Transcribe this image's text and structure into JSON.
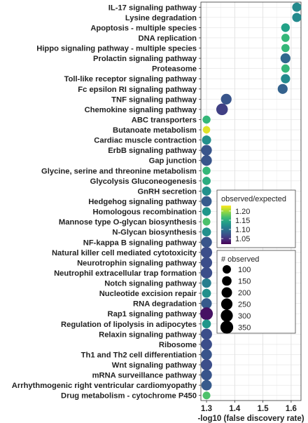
{
  "chart_data": {
    "type": "scatter",
    "title": "",
    "xlabel": "-log10 (false discovery rate)",
    "ylabel": "",
    "xlim": [
      1.28,
      1.635
    ],
    "xticks": [
      1.3,
      1.4,
      1.5,
      1.6
    ],
    "xtick_labels": [
      "1.3",
      "1.4",
      "1.5",
      "1.6"
    ],
    "grid": true,
    "color_scale": "viridis",
    "points": [
      {
        "category": "IL-17 signaling pathway",
        "x": 1.62,
        "ratio": 1.12,
        "observed": 130
      },
      {
        "category": "Lysine degradation",
        "x": 1.62,
        "ratio": 1.12,
        "observed": 130
      },
      {
        "category": "Apoptosis - multiple species",
        "x": 1.58,
        "ratio": 1.14,
        "observed": 110
      },
      {
        "category": "DNA replication",
        "x": 1.58,
        "ratio": 1.16,
        "observed": 90
      },
      {
        "category": "Hippo signaling pathway - multiple species",
        "x": 1.58,
        "ratio": 1.16,
        "observed": 90
      },
      {
        "category": "Prolactin signaling pathway",
        "x": 1.58,
        "ratio": 1.09,
        "observed": 170
      },
      {
        "category": "Proteasome",
        "x": 1.58,
        "ratio": 1.16,
        "observed": 95
      },
      {
        "category": "Toll-like receptor signaling pathway",
        "x": 1.58,
        "ratio": 1.12,
        "observed": 135
      },
      {
        "category": "Fc epsilon RI signaling pathway",
        "x": 1.57,
        "ratio": 1.085,
        "observed": 170
      },
      {
        "category": "TNF signaling pathway",
        "x": 1.37,
        "ratio": 1.075,
        "observed": 210
      },
      {
        "category": "Chemokine signaling pathway",
        "x": 1.355,
        "ratio": 1.06,
        "observed": 265
      },
      {
        "category": "ABC transporters",
        "x": 1.3,
        "ratio": 1.16,
        "observed": 85
      },
      {
        "category": "Butanoate metabolism",
        "x": 1.3,
        "ratio": 1.22,
        "observed": 65
      },
      {
        "category": "Cardiac muscle contraction",
        "x": 1.3,
        "ratio": 1.125,
        "observed": 130
      },
      {
        "category": "ErbB signaling pathway",
        "x": 1.3,
        "ratio": 1.075,
        "observed": 210
      },
      {
        "category": "Gap junction",
        "x": 1.3,
        "ratio": 1.075,
        "observed": 210
      },
      {
        "category": "Glycine, serine and threonine metabolism",
        "x": 1.3,
        "ratio": 1.16,
        "observed": 85
      },
      {
        "category": "Glycolysis  Gluconeogenesis",
        "x": 1.3,
        "ratio": 1.15,
        "observed": 95
      },
      {
        "category": "GnRH secretion",
        "x": 1.3,
        "ratio": 1.125,
        "observed": 130
      },
      {
        "category": "Hedgehog signaling pathway",
        "x": 1.3,
        "ratio": 1.08,
        "observed": 190
      },
      {
        "category": "Homologous recombination",
        "x": 1.3,
        "ratio": 1.13,
        "observed": 110
      },
      {
        "category": "Mannose type O-glycan biosynthesis",
        "x": 1.3,
        "ratio": 1.17,
        "observed": 75
      },
      {
        "category": "N-Glycan biosynthesis",
        "x": 1.3,
        "ratio": 1.125,
        "observed": 120
      },
      {
        "category": "NF-kappa B signaling pathway",
        "x": 1.3,
        "ratio": 1.075,
        "observed": 215
      },
      {
        "category": "Natural killer cell mediated cytotoxicity",
        "x": 1.3,
        "ratio": 1.07,
        "observed": 240
      },
      {
        "category": "Neurotrophin signaling pathway",
        "x": 1.3,
        "ratio": 1.07,
        "observed": 240
      },
      {
        "category": "Neutrophil extracellular trap formation",
        "x": 1.3,
        "ratio": 1.07,
        "observed": 250
      },
      {
        "category": "Notch signaling pathway",
        "x": 1.3,
        "ratio": 1.11,
        "observed": 140
      },
      {
        "category": "Nucleotide excision repair",
        "x": 1.3,
        "ratio": 1.125,
        "observed": 120
      },
      {
        "category": "RNA degradation",
        "x": 1.3,
        "ratio": 1.08,
        "observed": 200
      },
      {
        "category": "Rap1 signaling pathway",
        "x": 1.3,
        "ratio": 1.03,
        "observed": 340
      },
      {
        "category": "Regulation of lipolysis in adipocytes",
        "x": 1.3,
        "ratio": 1.13,
        "observed": 115
      },
      {
        "category": "Relaxin signaling pathway",
        "x": 1.3,
        "ratio": 1.07,
        "observed": 230
      },
      {
        "category": "Ribosome",
        "x": 1.3,
        "ratio": 1.07,
        "observed": 230
      },
      {
        "category": "Th1 and Th2 cell differentiation",
        "x": 1.3,
        "ratio": 1.075,
        "observed": 215
      },
      {
        "category": "Wnt signaling pathway",
        "x": 1.3,
        "ratio": 1.07,
        "observed": 240
      },
      {
        "category": "mRNA surveillance pathway",
        "x": 1.3,
        "ratio": 1.075,
        "observed": 215
      },
      {
        "category": "Arrhythmogenic right ventricular cardiomyopathy",
        "x": 1.3,
        "ratio": 1.08,
        "observed": 195
      },
      {
        "category": "Drug metabolism - cytochrome P450",
        "x": 1.3,
        "ratio": 1.17,
        "observed": 75
      }
    ],
    "color_legend": {
      "title": "observed/expected",
      "range": [
        1.02,
        1.23
      ],
      "ticks": [
        1.05,
        1.1,
        1.15,
        1.2
      ],
      "tick_labels": [
        "1.05",
        "1.10",
        "1.15",
        "1.20"
      ]
    },
    "size_legend": {
      "title": "# observed",
      "values": [
        100,
        150,
        200,
        250,
        300,
        350
      ],
      "labels": [
        "100",
        "150",
        "200",
        "250",
        "300",
        "350"
      ]
    },
    "legend_position": "right-inside"
  }
}
